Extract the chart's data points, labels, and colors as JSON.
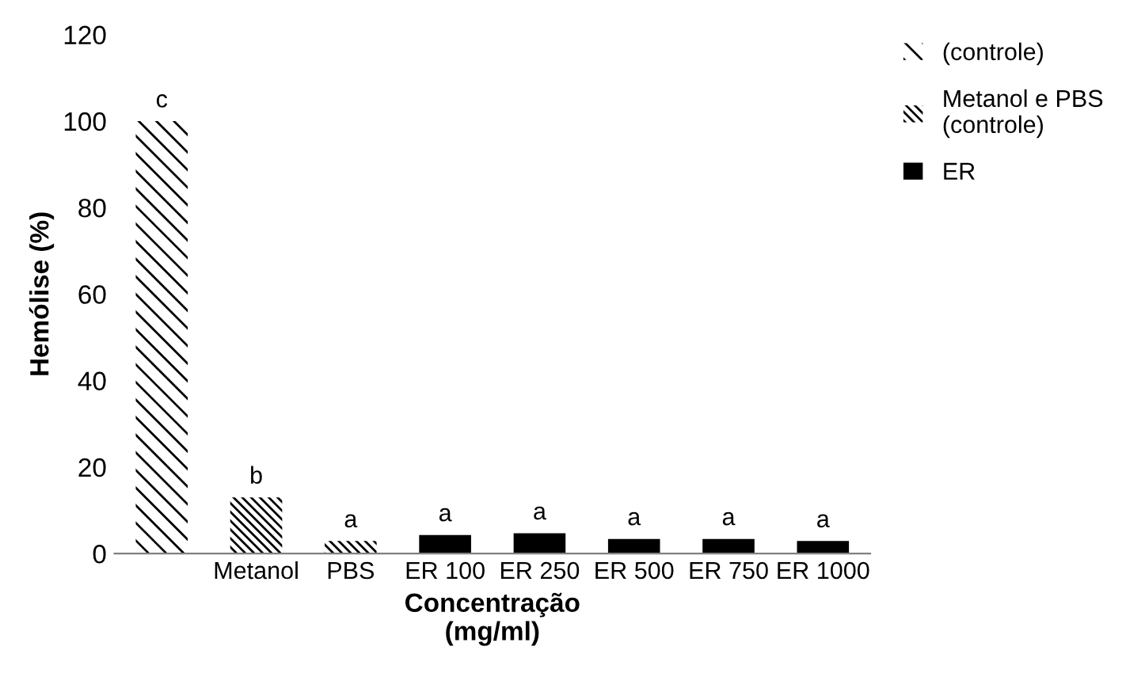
{
  "chart_data": {
    "type": "bar",
    "xlabel": "Concentração\n(mg/ml)",
    "ylabel": "Hemólise (%)",
    "categories": [
      null,
      "Metanol",
      "PBS",
      "ER 100",
      "ER 250",
      "ER 500",
      "ER 750",
      "ER 1000"
    ],
    "series": [
      {
        "name": "(controle)",
        "color": "#000000",
        "values": [
          100,
          null,
          null,
          null,
          null,
          null,
          null,
          null
        ],
        "value_labels": [
          "c",
          null,
          null,
          null,
          null,
          null,
          null,
          null
        ]
      },
      {
        "name": "Metanol e PBS\n(controle)",
        "color": "#000000",
        "values": [
          null,
          13,
          2.9,
          null,
          null,
          null,
          null,
          null
        ],
        "value_labels": [
          null,
          "b",
          "a",
          null,
          null,
          null,
          null,
          null
        ]
      },
      {
        "name": "ER",
        "color": "#000000",
        "values": [
          null,
          null,
          null,
          4.3,
          4.7,
          3.4,
          3.4,
          2.9
        ],
        "value_labels": [
          null,
          null,
          null,
          "a",
          "a",
          "a",
          "a",
          "a"
        ]
      }
    ],
    "ylim": [
      0,
      120
    ],
    "yticks": [
      0,
      20,
      40,
      60,
      80,
      100,
      120
    ],
    "grid": false,
    "legend": "top right"
  }
}
